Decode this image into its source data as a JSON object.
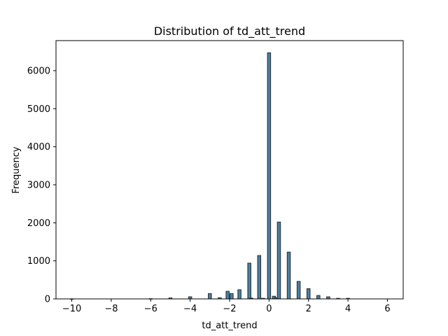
{
  "chart_data": {
    "type": "bar",
    "title": "Distribution of td_att_trend",
    "xlabel": "td_att_trend",
    "ylabel": "Frequency",
    "xlim": [
      -10.8,
      6.8
    ],
    "ylim": [
      0,
      6790
    ],
    "x_ticks": [
      -10,
      -8,
      -6,
      -4,
      -2,
      0,
      2,
      4,
      6
    ],
    "x_tick_labels": [
      "−10",
      "−8",
      "−6",
      "−4",
      "−2",
      "0",
      "2",
      "4",
      "6"
    ],
    "y_ticks": [
      0,
      1000,
      2000,
      3000,
      4000,
      5000,
      6000
    ],
    "y_tick_labels": [
      "0",
      "1000",
      "2000",
      "3000",
      "4000",
      "5000",
      "6000"
    ],
    "bin_width": 0.16,
    "bins": [
      {
        "x": -10,
        "count": 2
      },
      {
        "x": -6,
        "count": 5
      },
      {
        "x": -5,
        "count": 25
      },
      {
        "x": -4,
        "count": 55
      },
      {
        "x": -3,
        "count": 140
      },
      {
        "x": -2.5,
        "count": 30
      },
      {
        "x": -2.1,
        "count": 200
      },
      {
        "x": -1.9,
        "count": 140
      },
      {
        "x": -1.5,
        "count": 240
      },
      {
        "x": -1.0,
        "count": 940
      },
      {
        "x": -0.9,
        "count": 20
      },
      {
        "x": -0.5,
        "count": 1140
      },
      {
        "x": -0.3,
        "count": 15
      },
      {
        "x": 0,
        "count": 6470
      },
      {
        "x": 0.25,
        "count": 70
      },
      {
        "x": 0.35,
        "count": 30
      },
      {
        "x": 0.5,
        "count": 2020
      },
      {
        "x": 1.0,
        "count": 1230
      },
      {
        "x": 1.5,
        "count": 460
      },
      {
        "x": 2.0,
        "count": 270
      },
      {
        "x": 2.5,
        "count": 90
      },
      {
        "x": 3.0,
        "count": 55
      },
      {
        "x": 3.5,
        "count": 15
      },
      {
        "x": 4.0,
        "count": 15
      }
    ],
    "bar_color": "#4a7fa3",
    "bar_edge_color": "#2b2b2b",
    "grid": false,
    "legend": false
  }
}
